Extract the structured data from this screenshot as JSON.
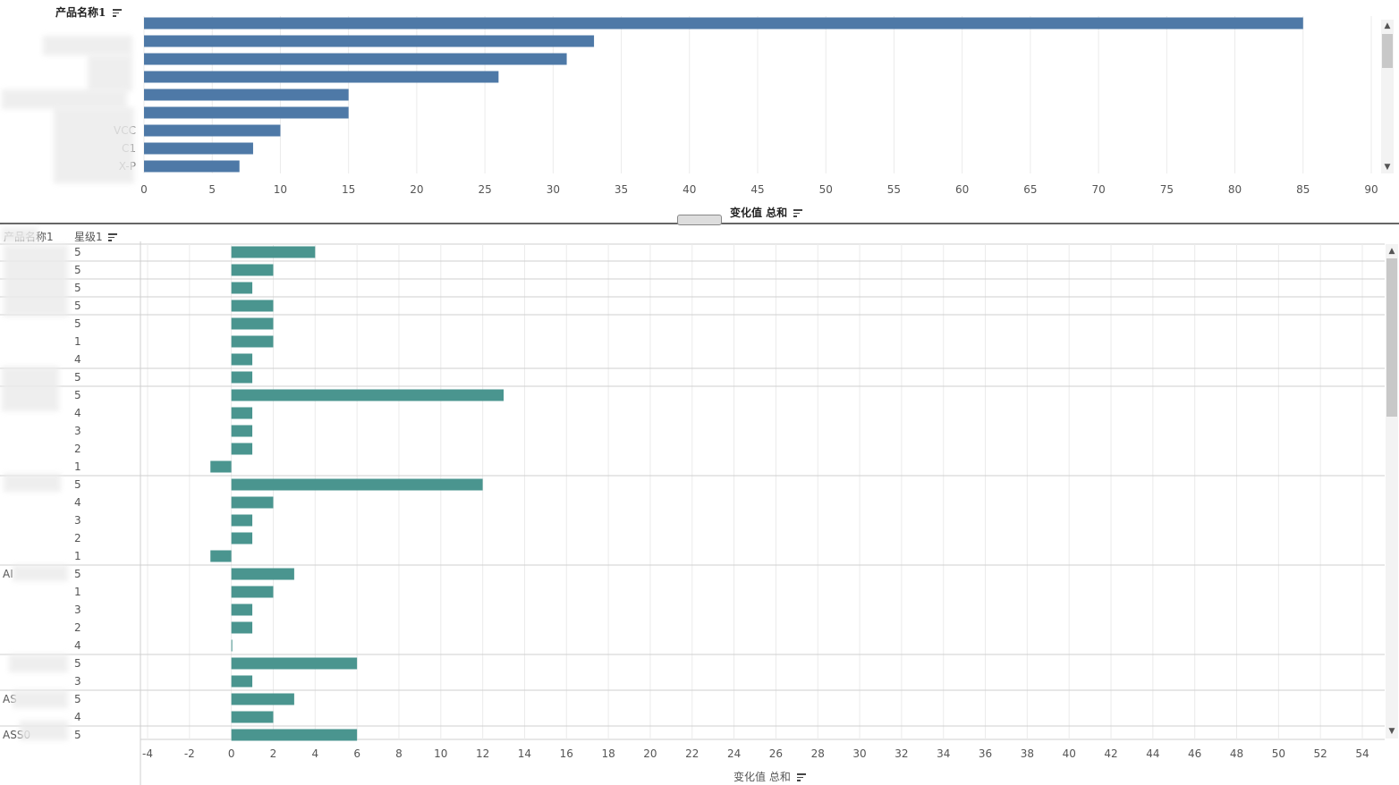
{
  "top_panel": {
    "row_header": "产品名称1",
    "axis_title": "变化值 总和"
  },
  "bottom_panel": {
    "col1_header": "产品名称1",
    "col2_header": "星级1",
    "axis_title": "变化值 总和"
  },
  "colors": {
    "top_bar": "#4e79a7",
    "bottom_bar": "#4a958f",
    "grid": "#ebebeb"
  },
  "chart_data": [
    {
      "type": "bar",
      "orientation": "horizontal",
      "categories": [
        "",
        "",
        "",
        "",
        "",
        "",
        "VCC",
        "C1",
        "X-P"
      ],
      "values": [
        85,
        33,
        31,
        26,
        15,
        15,
        10,
        8,
        7
      ],
      "xlabel": "变化值 总和",
      "xlim": [
        0,
        90
      ],
      "xticks": [
        0,
        5,
        10,
        15,
        20,
        25,
        30,
        35,
        40,
        45,
        50,
        55,
        60,
        65,
        70,
        75,
        80,
        85,
        90
      ],
      "grid": true
    },
    {
      "type": "bar",
      "orientation": "horizontal",
      "rows": [
        {
          "star": "5",
          "value": 4
        },
        {
          "star": "5",
          "value": 2
        },
        {
          "star": "5",
          "value": 1
        },
        {
          "star": "5",
          "value": 2
        },
        {
          "star": "5",
          "value": 2
        },
        {
          "star": "1",
          "value": 2
        },
        {
          "star": "4",
          "value": 1
        },
        {
          "star": "5",
          "value": 1
        },
        {
          "star": "5",
          "value": 13
        },
        {
          "star": "4",
          "value": 1
        },
        {
          "star": "3",
          "value": 1
        },
        {
          "star": "2",
          "value": 1
        },
        {
          "star": "1",
          "value": -1
        },
        {
          "star": "5",
          "value": 12
        },
        {
          "star": "4",
          "value": 2
        },
        {
          "star": "3",
          "value": 1
        },
        {
          "star": "2",
          "value": 1
        },
        {
          "star": "1",
          "value": -1
        },
        {
          "star": "5",
          "value": 3
        },
        {
          "star": "1",
          "value": 2
        },
        {
          "star": "3",
          "value": 1
        },
        {
          "star": "2",
          "value": 1
        },
        {
          "star": "4",
          "value": 0
        },
        {
          "star": "5",
          "value": 6
        },
        {
          "star": "3",
          "value": 1
        },
        {
          "star": "5",
          "value": 3
        },
        {
          "star": "4",
          "value": 2
        },
        {
          "star": "5",
          "value": 6
        }
      ],
      "group_sizes": [
        1,
        1,
        1,
        1,
        3,
        1,
        5,
        5,
        5,
        2,
        2,
        1
      ],
      "group_labels": [
        "",
        "",
        "",
        "",
        "",
        "",
        "",
        "",
        "AI",
        "",
        "AS",
        "ASS0"
      ],
      "xlabel": "变化值 总和",
      "xlim": [
        -4,
        55
      ],
      "xticks": [
        -4,
        -2,
        0,
        2,
        4,
        6,
        8,
        10,
        12,
        14,
        16,
        18,
        20,
        22,
        24,
        26,
        28,
        30,
        32,
        34,
        36,
        38,
        40,
        42,
        44,
        46,
        48,
        50,
        52,
        54
      ],
      "grid": true
    }
  ]
}
